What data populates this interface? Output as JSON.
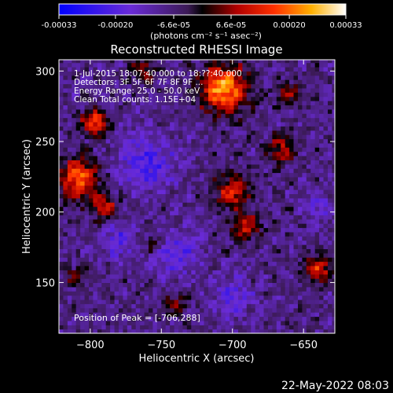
{
  "colorbar": {
    "tick_labels": [
      "-0.00033",
      "-0.00020",
      "-6.6e-05",
      "6.6e-05",
      "0.00020",
      "0.00033"
    ],
    "tick_values": [
      -0.00033,
      -0.0002,
      -6.6e-05,
      6.6e-05,
      0.0002,
      0.00033
    ],
    "range": [
      -0.00033,
      0.00033
    ],
    "unit_label": "(photons cm⁻² s⁻¹ asec⁻²)"
  },
  "chart_data": {
    "type": "heatmap",
    "title": "Reconstructed RHESSI Image",
    "xlabel": "Heliocentric X (arcsec)",
    "ylabel": "Heliocentric Y (arcsec)",
    "xlim": [
      -822,
      -628
    ],
    "ylim": [
      114,
      308
    ],
    "x_ticks": [
      -800,
      -750,
      -700,
      -650
    ],
    "x_tick_labels": [
      "−800",
      "−750",
      "−700",
      "−650"
    ],
    "y_ticks": [
      150,
      200,
      250,
      300
    ],
    "y_tick_labels": [
      "150",
      "200",
      "250",
      "300"
    ],
    "annotations": [
      "1-Jul-2015 18:07:40.000 to 18:??:40.000",
      "Detectors: 3F 5F 6F 7F 8F 9F ...",
      "Energy Range: 25.0 - 50.0 keV",
      "Clean     Total counts: 1.15E+04"
    ],
    "peak_label": "Position of Peak = [-706,288]",
    "peak_position": [
      -706,
      288
    ],
    "sources": [
      {
        "x": -706,
        "y": 288,
        "r": 16,
        "v": 0.00033
      },
      {
        "x": -797,
        "y": 264,
        "r": 9,
        "v": 0.00025
      },
      {
        "x": -808,
        "y": 224,
        "r": 14,
        "v": 0.00026
      },
      {
        "x": -790,
        "y": 205,
        "r": 9,
        "v": 0.00018
      },
      {
        "x": -700,
        "y": 215,
        "r": 12,
        "v": 0.0002
      },
      {
        "x": -690,
        "y": 190,
        "r": 10,
        "v": 0.00018
      },
      {
        "x": -665,
        "y": 245,
        "r": 10,
        "v": 0.00016
      },
      {
        "x": -640,
        "y": 160,
        "r": 10,
        "v": 0.0002
      },
      {
        "x": -660,
        "y": 285,
        "r": 8,
        "v": 0.00013
      },
      {
        "x": -740,
        "y": 135,
        "r": 8,
        "v": 0.00012
      },
      {
        "x": -755,
        "y": 178,
        "r": 7,
        "v": 0.0001
      },
      {
        "x": -762,
        "y": 300,
        "r": 9,
        "v": 0.00014
      },
      {
        "x": -812,
        "y": 155,
        "r": 7,
        "v": 9e-05
      }
    ],
    "negatives": [
      {
        "x": -760,
        "y": 235,
        "r": 20,
        "v": -0.00014
      },
      {
        "x": -740,
        "y": 170,
        "r": 16,
        "v": -0.00012
      },
      {
        "x": -700,
        "y": 140,
        "r": 14,
        "v": -0.00011
      },
      {
        "x": -640,
        "y": 205,
        "r": 10,
        "v": -0.0001
      },
      {
        "x": -780,
        "y": 180,
        "r": 12,
        "v": -0.00012
      }
    ]
  },
  "footer": {
    "date": "22-May-2022 08:03"
  }
}
